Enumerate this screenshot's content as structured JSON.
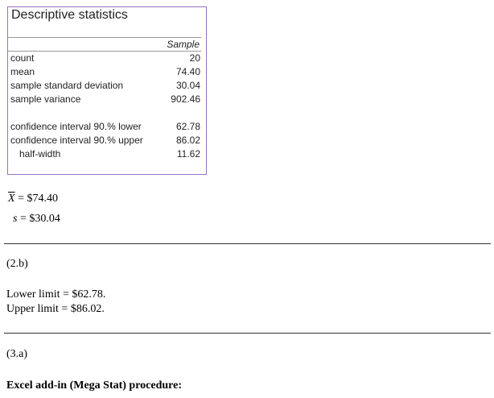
{
  "stats_box": {
    "title": "Descriptive statistics",
    "column_header": "Sample",
    "rows": [
      {
        "label": "count",
        "value": "20"
      },
      {
        "label": "mean",
        "value": "74.40"
      },
      {
        "label": "sample standard deviation",
        "value": "30.04"
      },
      {
        "label": "sample variance",
        "value": "902.46"
      },
      {
        "label": "confidence interval 90.% lower",
        "value": "62.78"
      },
      {
        "label": "confidence interval 90.% upper",
        "value": "86.02"
      },
      {
        "label": "half-width",
        "value": "11.62"
      }
    ]
  },
  "formulas": [
    {
      "symbol": "X",
      "text": "= $74.40"
    },
    {
      "symbol": "s",
      "text": "= $30.04"
    }
  ],
  "section_2b": {
    "heading": "(2.b)",
    "lines": [
      "Lower limit = $62.78.",
      "Upper limit = $86.02."
    ]
  },
  "section_3a": {
    "heading": "(3.a)",
    "bold_line": "Excel add-in (Mega Stat) procedure:"
  }
}
